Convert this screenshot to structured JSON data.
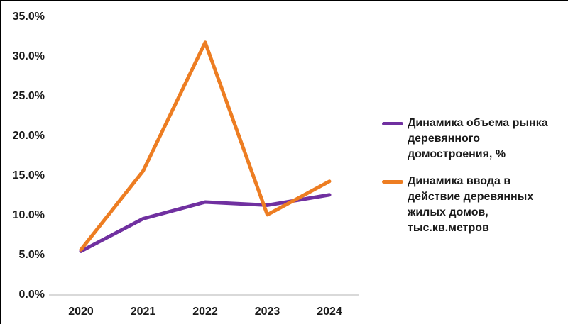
{
  "chart_data": {
    "type": "line",
    "title": "",
    "xlabel": "",
    "ylabel": "",
    "categories": [
      "2020",
      "2021",
      "2022",
      "2023",
      "2024"
    ],
    "series": [
      {
        "name": "Динамика объема рынка деревянного домостроения, %",
        "color": "#7030A0",
        "values": [
          5.5,
          9.6,
          11.7,
          11.3,
          12.6
        ]
      },
      {
        "name": "Динамика ввода в действие деревянных жилых домов, тыс.кв.метров",
        "color": "#ED7D22",
        "values": [
          5.7,
          15.6,
          31.8,
          10.1,
          14.3
        ]
      }
    ],
    "ylim": [
      0,
      35
    ],
    "ytick_step": 5,
    "ytick_labels": [
      "0.0%",
      "5.0%",
      "10.0%",
      "15.0%",
      "20.0%",
      "25.0%",
      "30.0%",
      "35.0%"
    ],
    "grid": false,
    "legend_position": "right",
    "axis_line_color": "#D9D9D9"
  }
}
